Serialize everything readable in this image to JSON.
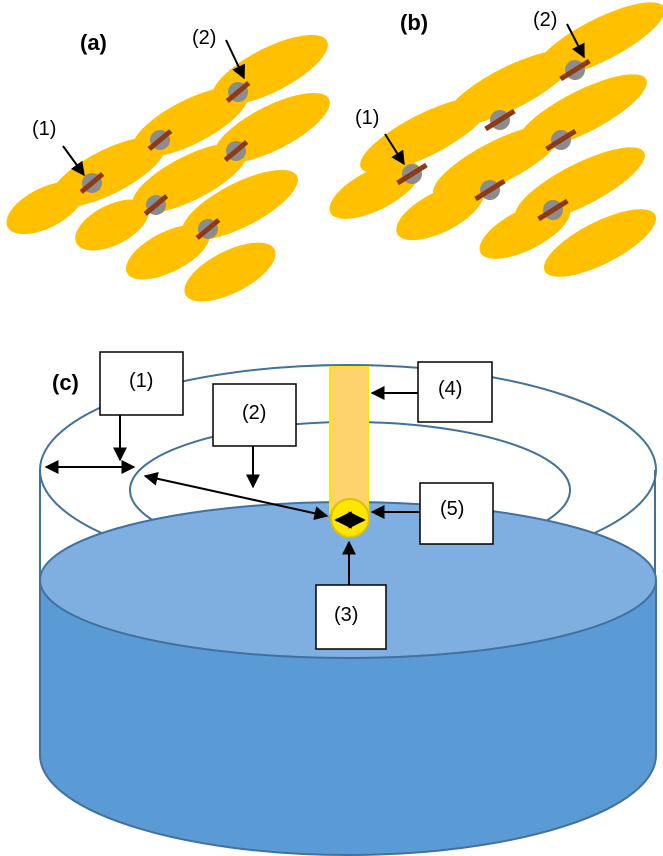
{
  "panels": {
    "a": {
      "label": "(a)",
      "callout_1": "(1)",
      "callout_2": "(2)"
    },
    "b": {
      "label": "(b)",
      "callout_1": "(1)",
      "callout_2": "(2)"
    },
    "c": {
      "label": "(c)",
      "boxes": [
        "(1)",
        "(2)",
        "(3)",
        "(4)",
        "(5)"
      ]
    }
  },
  "colors": {
    "molecule": "#FFC000",
    "marker": "#8C8C8C",
    "bar": "#8B3A1A",
    "water_side": "#5B9BD5",
    "water_top": "#7FAFE0",
    "pipette": "#FFD36B",
    "droplet": "#FFE600",
    "outline": "#41719C"
  }
}
